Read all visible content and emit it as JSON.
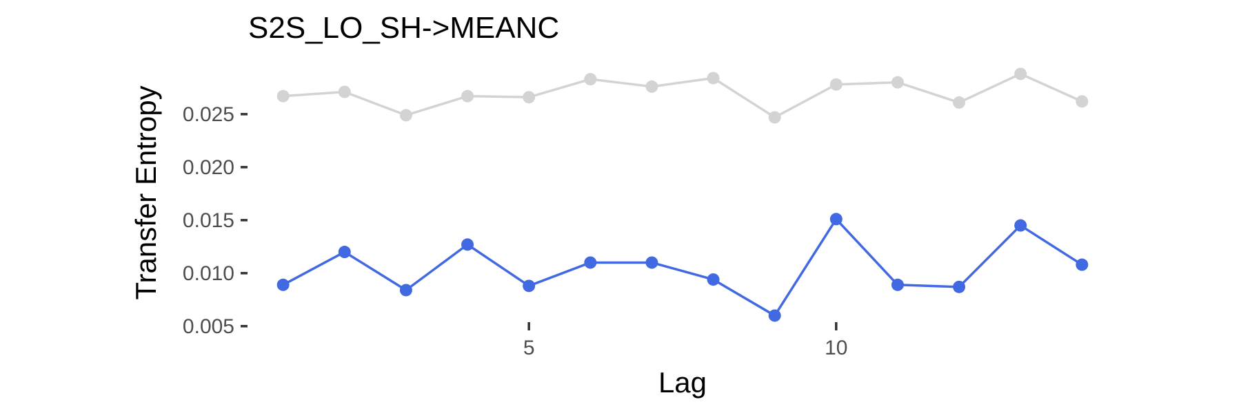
{
  "chart_data": {
    "type": "line",
    "title": "S2S_LO_SH->MEANC",
    "xlabel": "Lag",
    "ylabel": "Transfer Entropy",
    "x": [
      1,
      2,
      3,
      4,
      5,
      6,
      7,
      8,
      9,
      10,
      11,
      12,
      13,
      14
    ],
    "xlim": [
      0.6,
      14.4
    ],
    "ylim": [
      0.0046,
      0.0296
    ],
    "xticks": [
      5,
      10
    ],
    "xtick_labels": [
      "5",
      "10"
    ],
    "yticks": [
      0.005,
      0.01,
      0.015,
      0.02,
      0.025
    ],
    "ytick_labels": [
      "0.005",
      "0.010",
      "0.015",
      "0.020",
      "0.025"
    ],
    "grid": false,
    "legend": "none",
    "series": [
      {
        "color": "#d3d3d3",
        "values": [
          0.0267,
          0.0271,
          0.0249,
          0.0267,
          0.0266,
          0.0283,
          0.0276,
          0.0284,
          0.0247,
          0.0278,
          0.028,
          0.0261,
          0.0288,
          0.0262
        ]
      },
      {
        "color": "#4169e1",
        "values": [
          0.0089,
          0.012,
          0.0084,
          0.0127,
          0.0088,
          0.011,
          0.011,
          0.0094,
          0.006,
          0.0151,
          0.0089,
          0.0087,
          0.0145,
          0.0108
        ]
      }
    ]
  }
}
